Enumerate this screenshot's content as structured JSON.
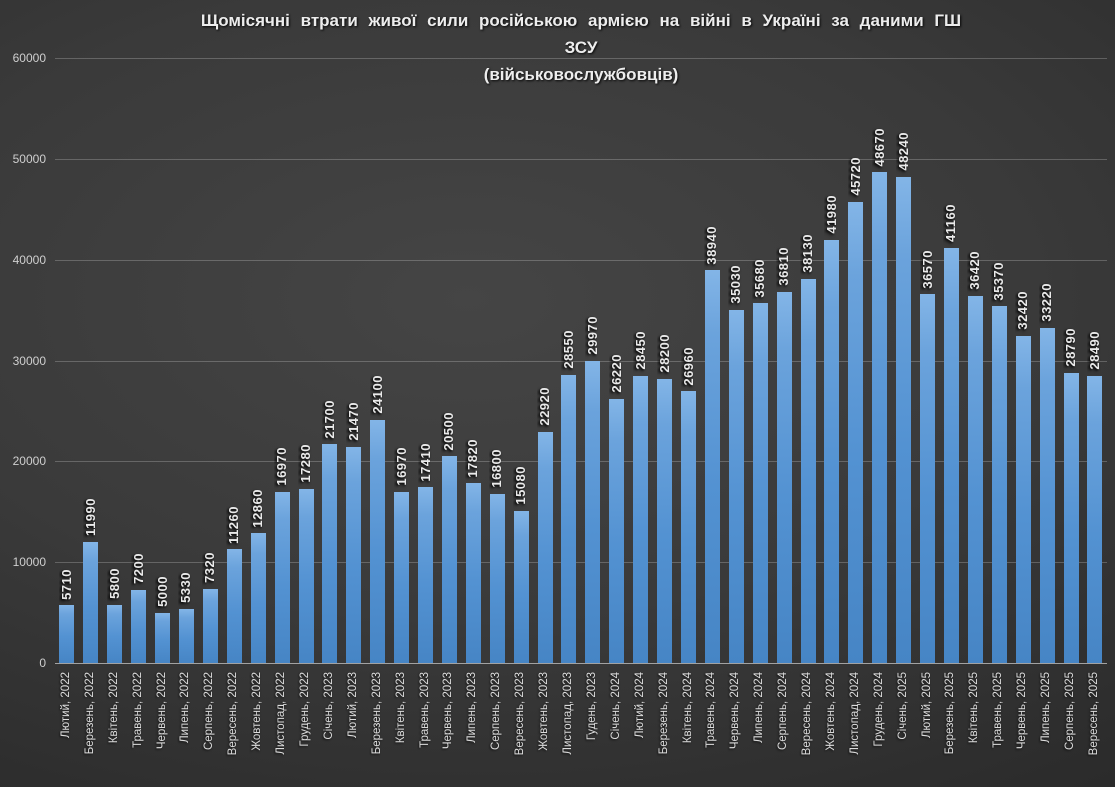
{
  "title": {
    "lines": [
      "Щомісячні втрати живої сили російською армією на війні в Україні за даними ГШ",
      "ЗСУ",
      "(військовослужбовців)"
    ]
  },
  "chart_data": {
    "type": "bar",
    "title": "Щомісячні втрати живої сили російською армією на війні в Україні за даними ГШ ЗСУ",
    "subtitle": "(військовослужбовців)",
    "categories": [
      "Лютий, 2022",
      "Березень, 2022",
      "Квітень, 2022",
      "Травень, 2022",
      "Червень, 2022",
      "Липень, 2022",
      "Серпень, 2022",
      "Вересень, 2022",
      "Жовтень, 2022",
      "Листопад, 2022",
      "Грудень, 2022",
      "Січень, 2023",
      "Лютий, 2023",
      "Березень, 2023",
      "Квітень, 2023",
      "Травень, 2023",
      "Червень, 2023",
      "Липень, 2023",
      "Серпень, 2023",
      "Вересень, 2023",
      "Жовтень, 2023",
      "Листопад, 2023",
      "Гудень, 2023",
      "Січень, 2024",
      "Лютий, 2024",
      "Березень, 2024",
      "Квітень, 2024",
      "Травень, 2024",
      "Червень, 2024",
      "Липень, 2024",
      "Серпень, 2024",
      "Вересень, 2024",
      "Жовтень, 2024",
      "Листопад, 2024",
      "Грудень, 2024",
      "Січень, 2025",
      "Лютий, 2025",
      "Березень, 2025",
      "Квітень, 2025",
      "Травень, 2025",
      "Червень, 2025",
      "Липень, 2025",
      "Серпень, 2025",
      "Вересень, 2025"
    ],
    "values": [
      5710,
      11990,
      5800,
      7200,
      5000,
      5330,
      7320,
      11260,
      12860,
      16970,
      17280,
      21700,
      21470,
      24100,
      16970,
      17410,
      20500,
      17820,
      16800,
      15080,
      22920,
      28550,
      29970,
      26220,
      28450,
      28200,
      26960,
      38940,
      35030,
      35680,
      36810,
      38130,
      41980,
      45720,
      48670,
      48240,
      36570,
      41160,
      36420,
      35370,
      32420,
      33220,
      28790,
      28490
    ],
    "xlabel": "",
    "ylabel": "",
    "ylim": [
      0,
      60000
    ],
    "yticks": [
      0,
      10000,
      20000,
      30000,
      40000,
      50000,
      60000
    ],
    "grid": true,
    "legend_position": "none",
    "bar_color_top": "#83b5e7",
    "bar_color_bottom": "#4685c5",
    "background_color": "#3a3a3a",
    "value_label_color": "#eaeaea",
    "axis_label_color": "#cfcfcf"
  }
}
